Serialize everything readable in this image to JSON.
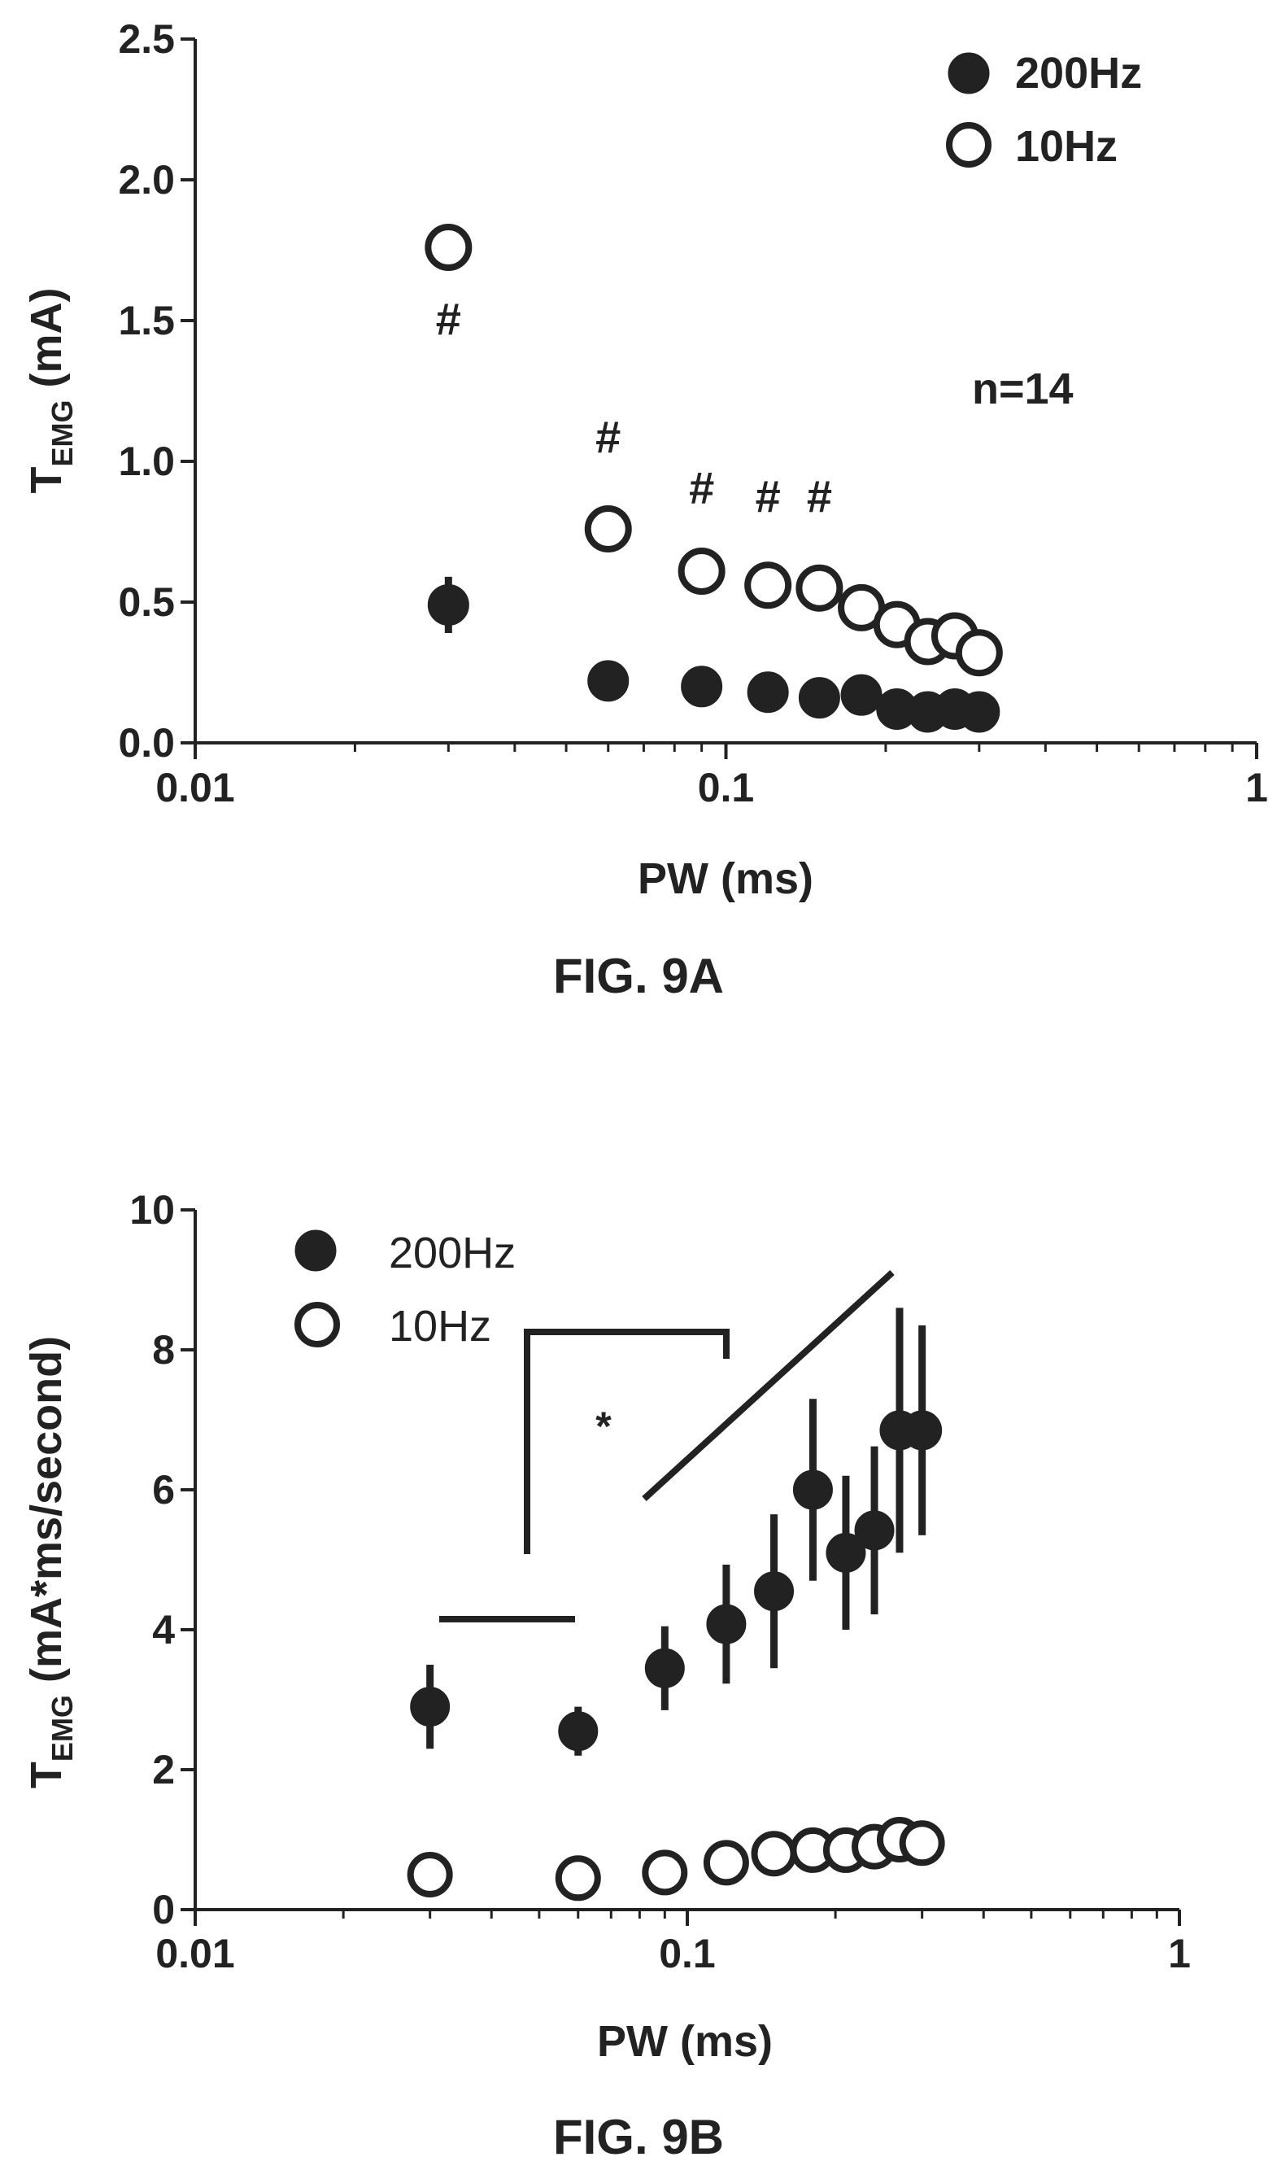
{
  "figures": [
    {
      "caption": "FIG. 9A",
      "annotation": "n=14",
      "significance_mark": "#"
    },
    {
      "caption": "FIG. 9B",
      "significance_mark": "*"
    }
  ],
  "chart_data": [
    {
      "type": "scatter",
      "title": "",
      "xlabel": "PW (ms)",
      "ylabel_main": "T",
      "ylabel_sub": "EMG",
      "ylabel_rest": " (mA)",
      "xscale": "log",
      "xlim": [
        0.01,
        1
      ],
      "ylim": [
        0,
        2.5
      ],
      "xticks": [
        0.01,
        0.1,
        1
      ],
      "xtick_labels": [
        "0.01",
        "0.1",
        "1"
      ],
      "yticks": [
        0,
        0.5,
        1.0,
        1.5,
        2.0,
        2.5
      ],
      "ytick_labels": [
        "0.0",
        "0.5",
        "1.0",
        "1.5",
        "2.0",
        "2.5"
      ],
      "legend_placement": "top-right",
      "legend_style": "bold",
      "series": [
        {
          "name": "200Hz",
          "marker": "filled-circle",
          "x": [
            0.03,
            0.06,
            0.09,
            0.12,
            0.15,
            0.18,
            0.21,
            0.24,
            0.27,
            0.3
          ],
          "y": [
            0.49,
            0.22,
            0.2,
            0.18,
            0.16,
            0.17,
            0.12,
            0.11,
            0.12,
            0.11
          ],
          "err": [
            0.1,
            0.02,
            0.02,
            0.02,
            0.02,
            0.02,
            0.02,
            0.02,
            0.02,
            0.02
          ]
        },
        {
          "name": "10Hz",
          "marker": "open-circle",
          "x": [
            0.03,
            0.06,
            0.09,
            0.12,
            0.15,
            0.18,
            0.21,
            0.24,
            0.27,
            0.3
          ],
          "y": [
            1.76,
            0.76,
            0.61,
            0.56,
            0.55,
            0.48,
            0.42,
            0.36,
            0.38,
            0.32
          ],
          "err": [
            0,
            0,
            0,
            0,
            0,
            0,
            0,
            0,
            0,
            0
          ]
        }
      ],
      "significance": {
        "symbol": "#",
        "points": [
          {
            "x": 0.03,
            "y": 1.45
          },
          {
            "x": 0.06,
            "y": 1.03
          },
          {
            "x": 0.09,
            "y": 0.85
          },
          {
            "x": 0.12,
            "y": 0.82
          },
          {
            "x": 0.15,
            "y": 0.82
          }
        ]
      },
      "annotations": [
        {
          "text": "n=14",
          "x": 0.2,
          "y": 1.23
        }
      ]
    },
    {
      "type": "scatter",
      "title": "",
      "xlabel": "PW (ms)",
      "ylabel_main": "T",
      "ylabel_sub": "EMG",
      "ylabel_rest": " (mA*ms/second)",
      "xscale": "log",
      "xlim": [
        0.01,
        1
      ],
      "ylim": [
        0,
        10
      ],
      "xticks": [
        0.01,
        0.1,
        1
      ],
      "xtick_labels": [
        "0.01",
        "0.1",
        "1"
      ],
      "yticks": [
        0,
        2,
        4,
        6,
        8,
        10
      ],
      "ytick_labels": [
        "0",
        "2",
        "4",
        "6",
        "8",
        "10"
      ],
      "legend_placement": "top-left",
      "legend_style": "normal",
      "series": [
        {
          "name": "200Hz",
          "marker": "filled-circle",
          "x": [
            0.03,
            0.06,
            0.09,
            0.12,
            0.15,
            0.18,
            0.21,
            0.24,
            0.27,
            0.3
          ],
          "y": [
            2.9,
            2.55,
            3.45,
            4.08,
            4.55,
            6.0,
            5.1,
            5.42,
            6.85,
            6.85
          ],
          "err": [
            0.6,
            0.35,
            0.6,
            0.85,
            1.1,
            1.3,
            1.1,
            1.2,
            1.75,
            1.5
          ]
        },
        {
          "name": "10Hz",
          "marker": "open-circle",
          "x": [
            0.03,
            0.06,
            0.09,
            0.12,
            0.15,
            0.18,
            0.21,
            0.24,
            0.27,
            0.3
          ],
          "y": [
            0.5,
            0.45,
            0.53,
            0.67,
            0.8,
            0.85,
            0.85,
            0.9,
            1.0,
            0.95
          ],
          "err": [
            0,
            0,
            0,
            0,
            0,
            0,
            0,
            0,
            0,
            0
          ]
        }
      ],
      "significance": {
        "symbol": "*",
        "x": 0.075,
        "y": 6.9
      }
    }
  ]
}
